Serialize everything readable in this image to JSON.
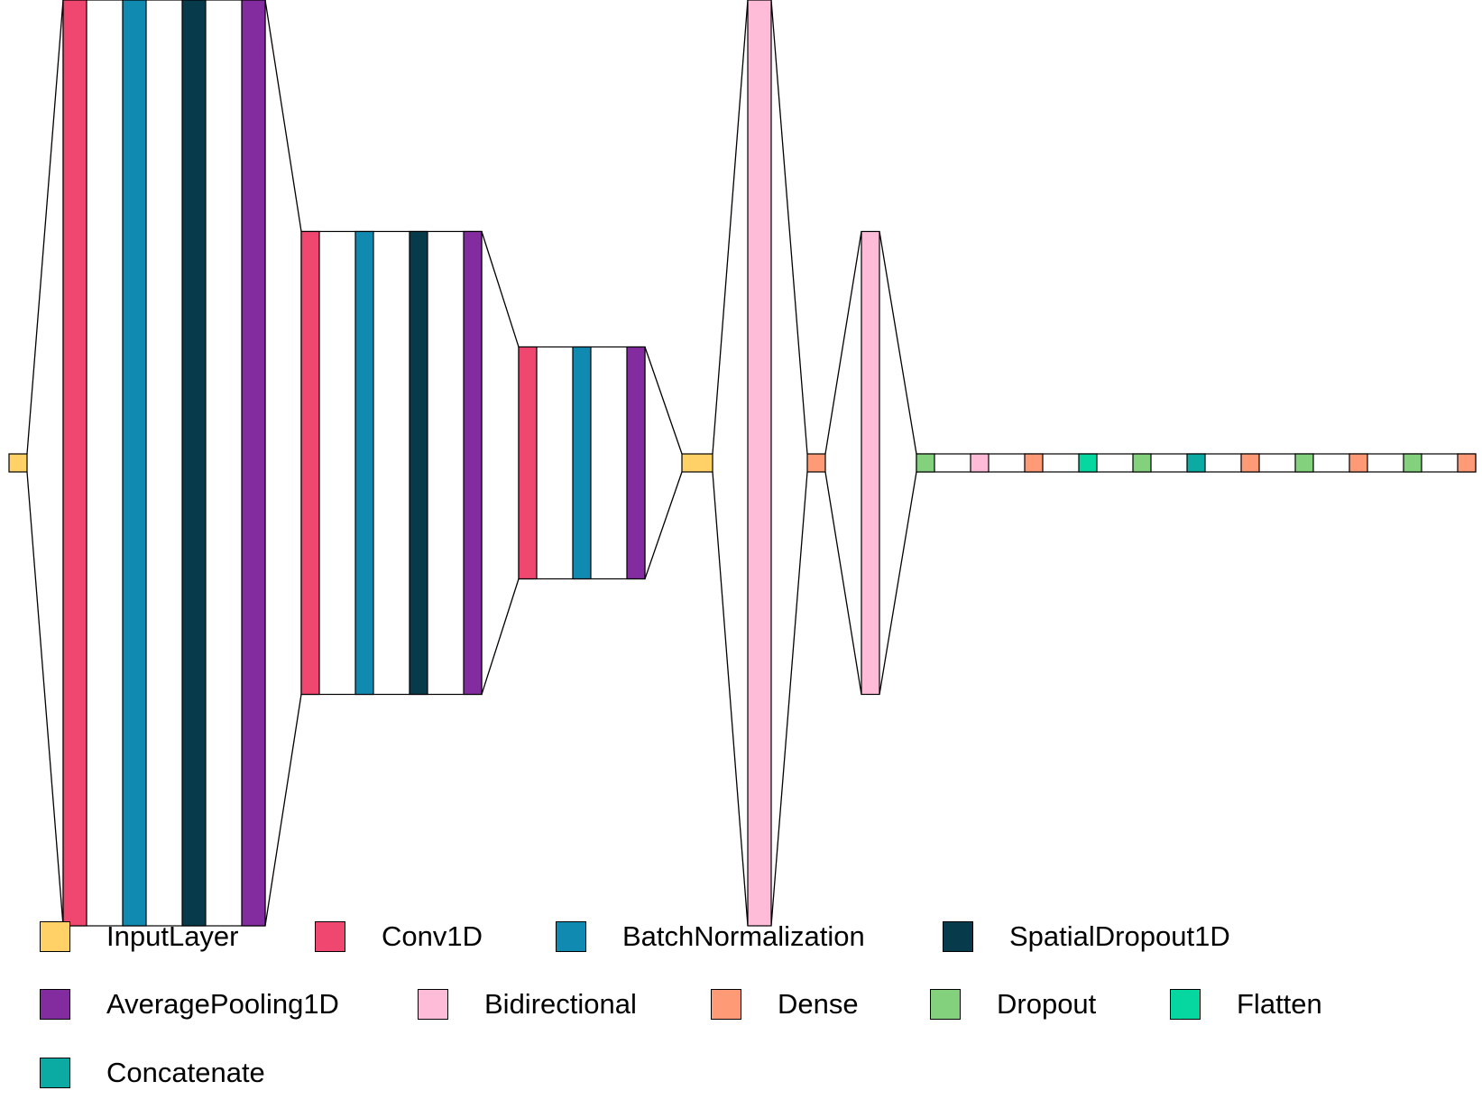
{
  "legend": [
    {
      "key": "input",
      "label": "InputLayer",
      "color": "#FFD166"
    },
    {
      "key": "conv",
      "label": "Conv1D",
      "color": "#EF476F"
    },
    {
      "key": "bn",
      "label": "BatchNormalization",
      "color": "#118AB2"
    },
    {
      "key": "sdrop",
      "label": "SpatialDropout1D",
      "color": "#073B4C"
    },
    {
      "key": "pool",
      "label": "AveragePooling1D",
      "color": "#832C9F"
    },
    {
      "key": "bidir",
      "label": "Bidirectional",
      "color": "#FFBCD9"
    },
    {
      "key": "dense",
      "label": "Dense",
      "color": "#FF9A76"
    },
    {
      "key": "dropout",
      "label": "Dropout",
      "color": "#83D17C"
    },
    {
      "key": "flatten",
      "label": "Flatten",
      "color": "#06D6A0"
    },
    {
      "key": "concat",
      "label": "Concatenate",
      "color": "#0BABA4"
    }
  ],
  "blocks": [
    {
      "layers": [
        "input"
      ]
    },
    {
      "layers": [
        "conv",
        "bn",
        "sdrop",
        "pool"
      ]
    },
    {
      "layers": [
        "conv",
        "bn",
        "sdrop",
        "pool"
      ]
    },
    {
      "layers": [
        "conv",
        "bn",
        "pool"
      ]
    },
    {
      "layers": [
        "input"
      ]
    },
    {
      "layers": [
        "bidir"
      ]
    },
    {
      "layers": [
        "dense"
      ]
    },
    {
      "layers": [
        "bidir"
      ]
    },
    {
      "layers": [
        "dropout",
        "bidir",
        "dense",
        "flatten",
        "dropout",
        "concat",
        "dense",
        "dropout",
        "dense",
        "dropout",
        "dense"
      ]
    }
  ]
}
